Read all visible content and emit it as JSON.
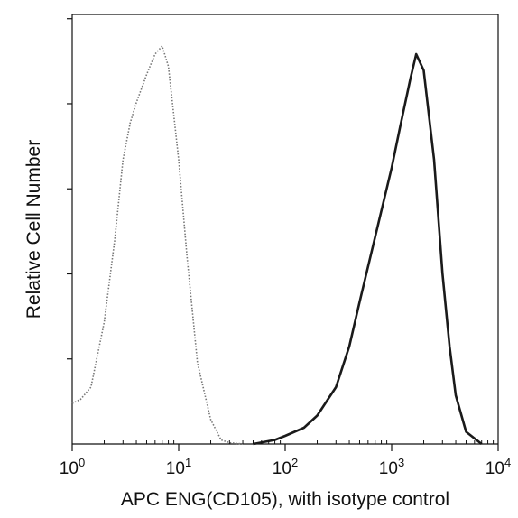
{
  "chart_data": {
    "type": "line",
    "title": "",
    "xlabel": "APC ENG(CD105), with isotype control",
    "ylabel": "Relative Cell Number",
    "xscale": "log",
    "xlim": [
      1,
      10000
    ],
    "ylim": [
      0,
      100
    ],
    "x_ticks": [
      {
        "base": "10",
        "exp": "0",
        "value": 1
      },
      {
        "base": "10",
        "exp": "1",
        "value": 10
      },
      {
        "base": "10",
        "exp": "2",
        "value": 100
      },
      {
        "base": "10",
        "exp": "3",
        "value": 1000
      },
      {
        "base": "10",
        "exp": "4",
        "value": 10000
      }
    ],
    "y_ticks_labeled": false,
    "y_tick_count": 5,
    "grid": false,
    "legend": "none",
    "series": [
      {
        "style": "dotted",
        "color": "#777777",
        "x": [
          1.0,
          1.2,
          1.5,
          2.0,
          2.5,
          3.0,
          3.5,
          4.0,
          5.0,
          6.0,
          7.0,
          8.0,
          10,
          12,
          15,
          20,
          25,
          30,
          40
        ],
        "y": [
          10,
          11,
          14,
          30,
          50,
          70,
          79,
          84,
          91,
          96,
          98,
          93,
          70,
          46,
          20,
          6,
          1,
          0.3,
          0
        ]
      },
      {
        "style": "solid",
        "color": "#1a1a1a",
        "x": [
          50,
          80,
          100,
          150,
          200,
          300,
          400,
          500,
          700,
          1000,
          1200,
          1500,
          1700,
          2000,
          2500,
          3000,
          3500,
          4000,
          5000,
          7000
        ],
        "y": [
          0,
          1,
          2,
          4,
          7,
          14,
          24,
          35,
          51,
          68,
          78,
          90,
          96,
          92,
          70,
          42,
          24,
          12,
          3,
          0
        ]
      }
    ]
  }
}
